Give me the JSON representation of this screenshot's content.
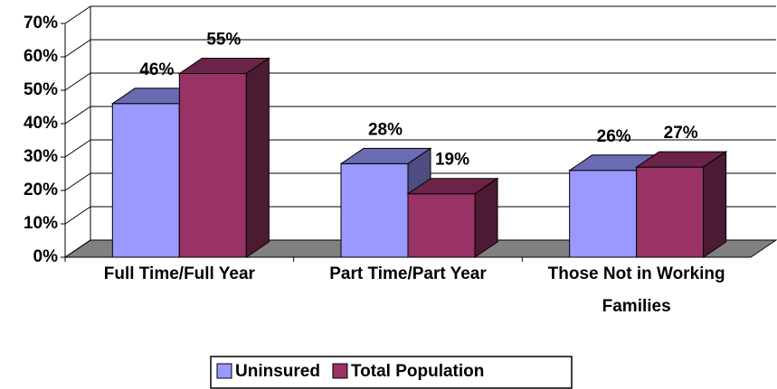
{
  "chart_data": {
    "type": "bar3d",
    "categories": [
      "Full Time/Full Year",
      "Part Time/Part Year",
      "Those Not in Working Families"
    ],
    "series": [
      {
        "name": "Uninsured",
        "color": "#9999ff",
        "values": [
          46,
          28,
          26
        ],
        "value_labels": [
          "46%",
          "28%",
          "26%"
        ]
      },
      {
        "name": "Total Population",
        "color": "#993366",
        "values": [
          55,
          19,
          27
        ],
        "value_labels": [
          "55%",
          "19%",
          "27%"
        ]
      }
    ],
    "ylim": [
      0,
      70
    ],
    "yticks": [
      {
        "value": 0,
        "label": "0%"
      },
      {
        "value": 10,
        "label": "10%"
      },
      {
        "value": 20,
        "label": "20%"
      },
      {
        "value": 30,
        "label": "30%"
      },
      {
        "value": 40,
        "label": "40%"
      },
      {
        "value": 50,
        "label": "50%"
      },
      {
        "value": 60,
        "label": "60%"
      },
      {
        "value": 70,
        "label": "70%"
      }
    ],
    "grid": true,
    "legend": "bottom"
  }
}
